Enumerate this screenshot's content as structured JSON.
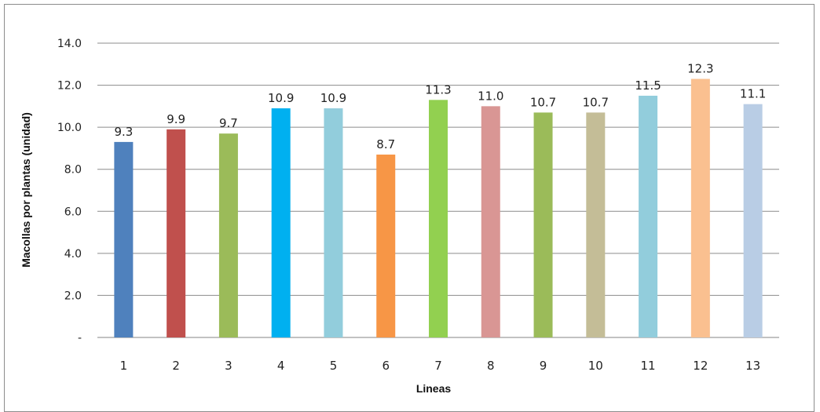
{
  "chart_data": {
    "type": "bar",
    "title": "",
    "xlabel": "Lineas",
    "ylabel": "Macollas por plantas (unidad)",
    "ylim": [
      0,
      14
    ],
    "y_ticks": [
      "-",
      "2.0",
      "4.0",
      "6.0",
      "8.0",
      "10.0",
      "12.0",
      "14.0"
    ],
    "grid": true,
    "legend": "none",
    "categories": [
      "1",
      "2",
      "3",
      "4",
      "5",
      "6",
      "7",
      "8",
      "9",
      "10",
      "11",
      "12",
      "13"
    ],
    "values": [
      9.3,
      9.9,
      9.7,
      10.9,
      10.9,
      8.7,
      11.3,
      11.0,
      10.7,
      10.7,
      11.5,
      12.3,
      11.1
    ],
    "data_labels": [
      "9.3",
      "9.9",
      "9.7",
      "10.9",
      "10.9",
      "8.7",
      "11.3",
      "11.0",
      "10.7",
      "10.7",
      "11.5",
      "12.3",
      "11.1"
    ],
    "colors": [
      "#4f81bd",
      "#c0504d",
      "#9bbb59",
      "#00b0f0",
      "#92cddc",
      "#f79646",
      "#92d050",
      "#d99694",
      "#9bbb59",
      "#c4bd97",
      "#92cddc",
      "#fac090",
      "#b9cde5"
    ]
  }
}
